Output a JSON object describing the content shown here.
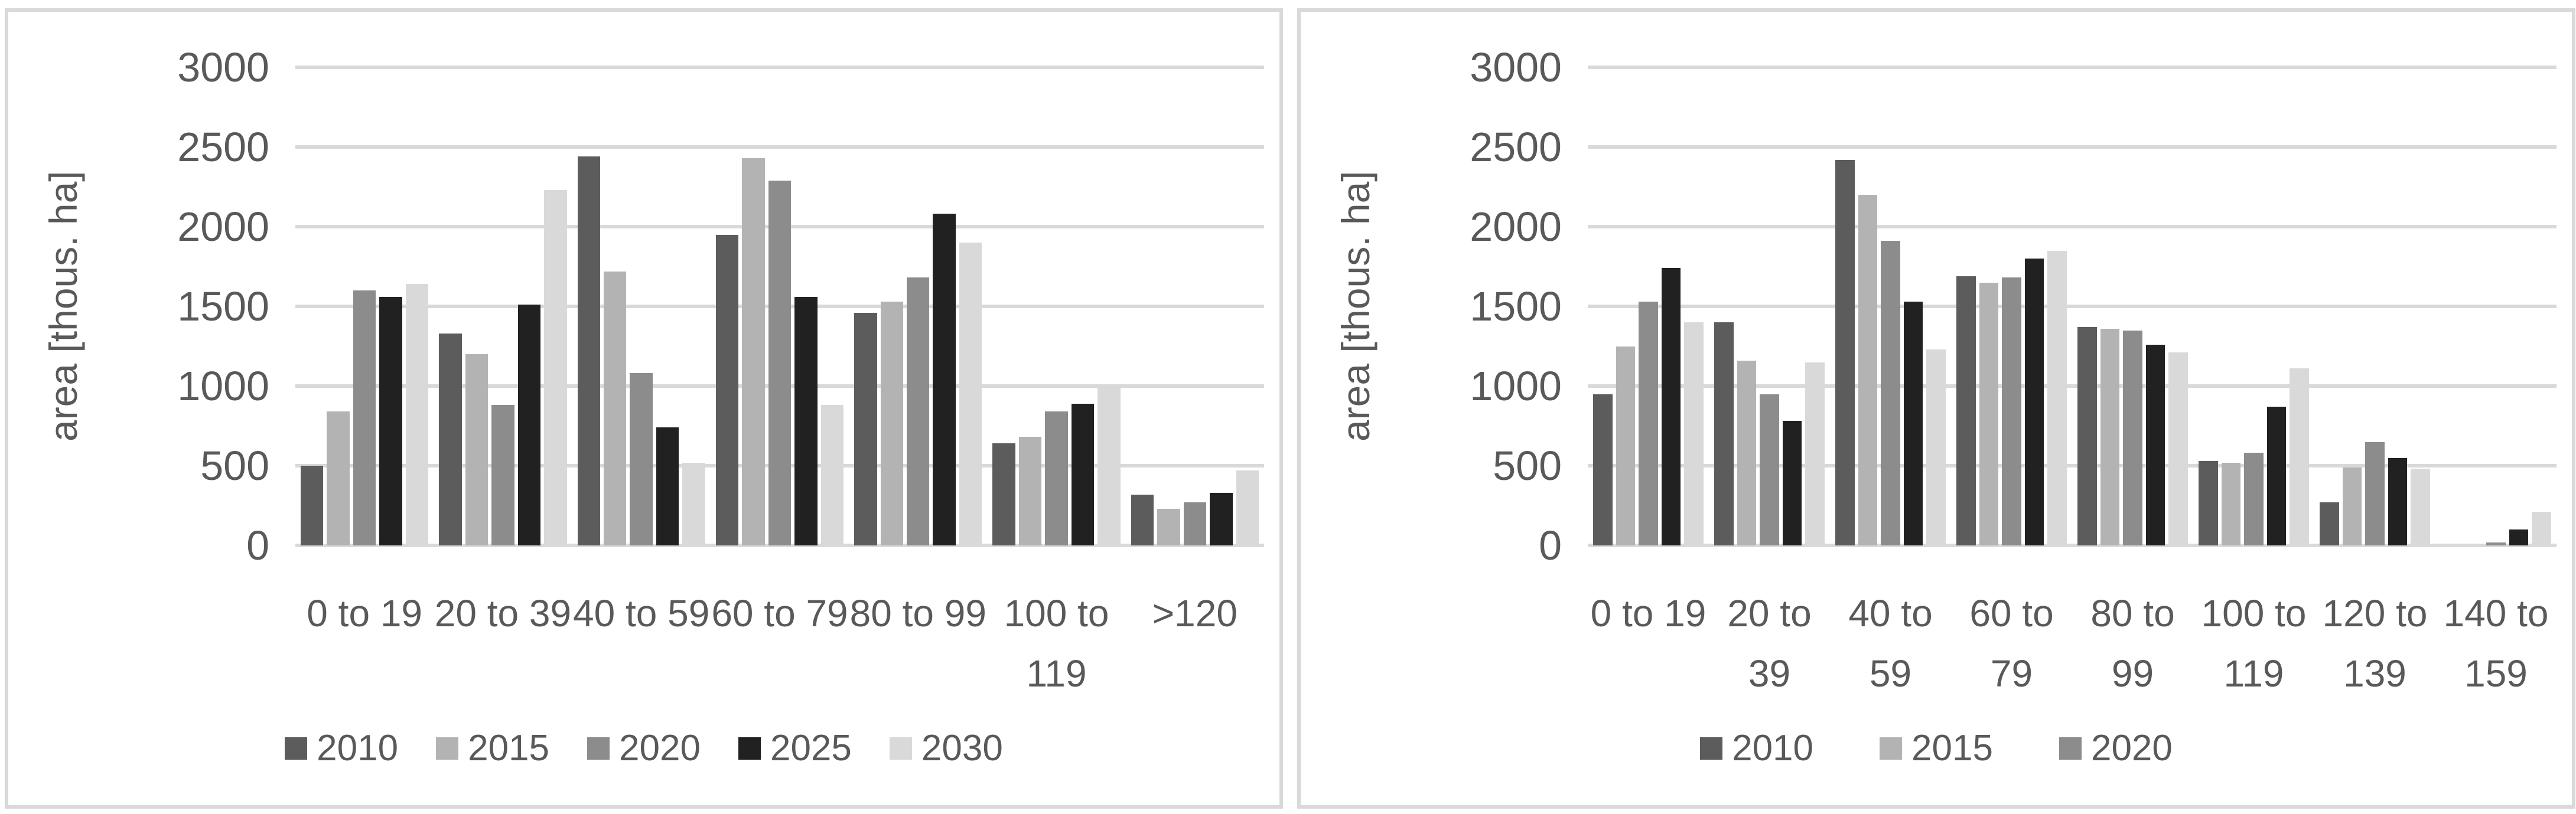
{
  "colors": {
    "background": "#ffffff",
    "text": "#595959",
    "gridline": "#d9d9d9",
    "panel_border": "#d9d9d9"
  },
  "chart_data": [
    {
      "type": "bar",
      "title": "",
      "xlabel": "",
      "ylabel": "area [thous. ha]",
      "ylim": [
        0,
        3000
      ],
      "ytick_step": 500,
      "ytick_labels": [
        "0",
        "500",
        "1000",
        "1500",
        "2000",
        "2500",
        "3000"
      ],
      "grid": true,
      "legend_position": "bottom",
      "legend_entries": [
        "2010",
        "2015",
        "2020",
        "2025",
        "2030"
      ],
      "categories": [
        "0 to 19",
        "20 to 39",
        "40 to 59",
        "60 to 79",
        "80 to 99",
        "100 to 119",
        ">120"
      ],
      "series": [
        {
          "name": "2010",
          "color": "#5c5c5c",
          "in_legend": true,
          "values": [
            500,
            1330,
            2440,
            1950,
            1460,
            640,
            320
          ]
        },
        {
          "name": "2015",
          "color": "#b3b3b3",
          "in_legend": true,
          "values": [
            840,
            1200,
            1720,
            2430,
            1530,
            680,
            230
          ]
        },
        {
          "name": "2020",
          "color": "#8c8c8c",
          "in_legend": true,
          "values": [
            1600,
            880,
            1080,
            2290,
            1680,
            840,
            270
          ]
        },
        {
          "name": "2025",
          "color": "#212121",
          "in_legend": true,
          "values": [
            1560,
            1510,
            740,
            1560,
            2080,
            890,
            330
          ]
        },
        {
          "name": "2030",
          "color": "#d9d9d9",
          "in_legend": true,
          "values": [
            1640,
            2230,
            520,
            880,
            1900,
            1000,
            470
          ]
        }
      ]
    },
    {
      "type": "bar",
      "title": "",
      "xlabel": "",
      "ylabel": "area [thous. ha]",
      "ylim": [
        0,
        3000
      ],
      "ytick_step": 500,
      "ytick_labels": [
        "0",
        "500",
        "1000",
        "1500",
        "2000",
        "2500",
        "3000"
      ],
      "grid": true,
      "legend_position": "bottom",
      "legend_entries": [
        "2010",
        "2015",
        "2020"
      ],
      "categories": [
        "0 to 19",
        "20 to 39",
        "40 to 59",
        "60 to 79",
        "80 to 99",
        "100 to 119",
        "120 to 139",
        "140 to 159"
      ],
      "series": [
        {
          "name": "2010",
          "color": "#5c5c5c",
          "in_legend": true,
          "values": [
            950,
            1400,
            2420,
            1690,
            1370,
            530,
            270,
            0
          ]
        },
        {
          "name": "2015",
          "color": "#b3b3b3",
          "in_legend": true,
          "values": [
            1250,
            1160,
            2200,
            1650,
            1360,
            520,
            490,
            0
          ]
        },
        {
          "name": "2020",
          "color": "#8c8c8c",
          "in_legend": true,
          "values": [
            1530,
            950,
            1910,
            1680,
            1350,
            580,
            650,
            20
          ]
        },
        {
          "name": "2025",
          "color": "#212121",
          "in_legend": false,
          "values": [
            1740,
            780,
            1530,
            1800,
            1260,
            870,
            550,
            100
          ]
        },
        {
          "name": "2030",
          "color": "#d9d9d9",
          "in_legend": false,
          "values": [
            1400,
            1150,
            1230,
            1850,
            1210,
            1110,
            480,
            210
          ]
        }
      ]
    }
  ]
}
